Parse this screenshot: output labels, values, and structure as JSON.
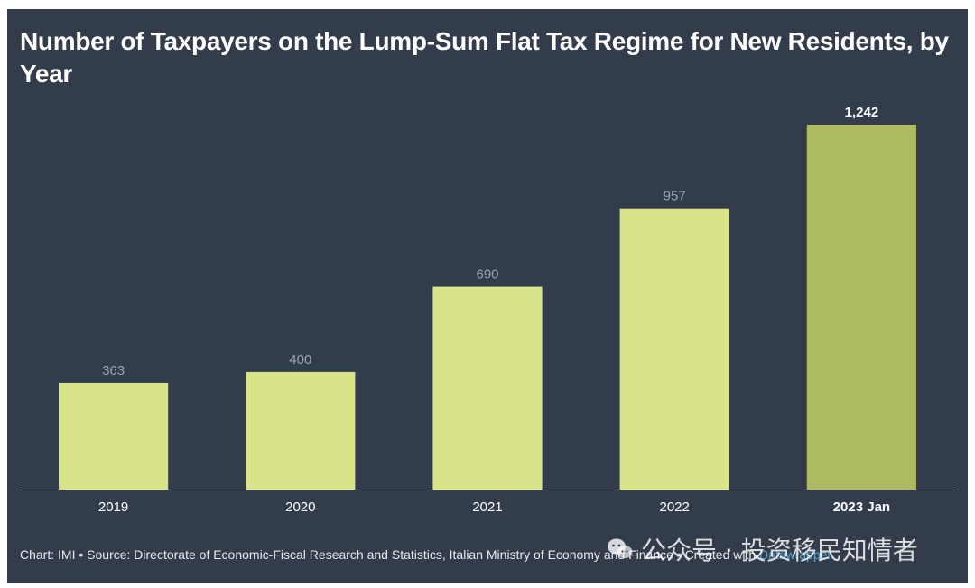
{
  "chart_data": {
    "type": "bar",
    "title": "Number of Taxpayers on the Lump-Sum Flat Tax Regime for New Residents, by Year",
    "categories": [
      "2019",
      "2020",
      "2021",
      "2022",
      "2023 Jan"
    ],
    "values": [
      363,
      400,
      690,
      957,
      1242
    ],
    "value_labels": [
      "363",
      "400",
      "690",
      "957",
      "1,242"
    ],
    "highlight_index": 4,
    "xlabel": "",
    "ylabel": "",
    "ylim": [
      0,
      1242
    ],
    "grid": false
  },
  "colors": {
    "background": "#323c4a",
    "bar": "#d9e48a",
    "bar_highlight": "#aebb62",
    "label_muted": "#9aa3ae",
    "label_strong": "#ffffff",
    "axis": "#c9ced6"
  },
  "footer": {
    "chart_by": "Chart: IMI",
    "source": "Source: Directorate of Economic-Fiscal Research and Statistics, Italian Ministry of Economy and Finance",
    "created_with": "Created with",
    "brand": "Datawrapper",
    "separator": " • "
  },
  "watermark": {
    "icon": "wechat-icon",
    "text": "公众号 · 投资移民知情者"
  }
}
